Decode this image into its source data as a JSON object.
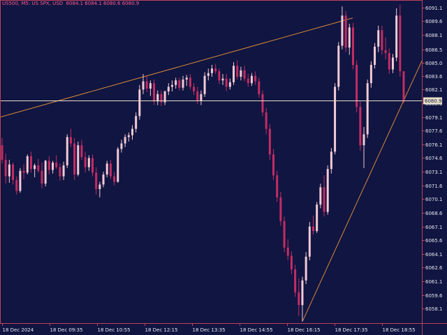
{
  "header": {
    "symbol": "US500, M5:  US SPX, USD",
    "ohlc": "6084.1 6084.1 6080.6 6080.9"
  },
  "colors": {
    "background": "#101541",
    "frame": "#c0405e",
    "bull_candle": "#f3cad5",
    "bear_candle": "#c42c64",
    "trendline": "#d8893a",
    "price_line": "#e8e0c8",
    "text": "#e6e6ee"
  },
  "chart_data": {
    "type": "candlestick",
    "title": "",
    "xlabel": "",
    "ylabel": "",
    "ylim": [
      6056.6,
      6091.6
    ],
    "y_ticks": [
      "6091.1",
      "6089.6",
      "6088.1",
      "6086.5",
      "6085.0",
      "6083.6",
      "6082.1",
      "6080.6",
      "6079.1",
      "6077.6",
      "6076.1",
      "6074.6",
      "6073.1",
      "6071.6",
      "6070.1",
      "6068.6",
      "6067.1",
      "6065.6",
      "6064.1",
      "6062.6",
      "6061.1",
      "6059.6",
      "6058.1"
    ],
    "x_ticks": [
      "18 Dec 2024",
      "18 Dec 09:35",
      "18 Dec 10:55",
      "18 Dec 12:15",
      "18 Dec 13:35",
      "18 Dec 14:55",
      "18 Dec 16:15",
      "18 Dec 17:35",
      "18 Dec 18:55"
    ],
    "current_price_label": "6080.9",
    "current_price": 6080.9,
    "candles": [
      {
        "o": 6076.0,
        "h": 6076.8,
        "l": 6074.0,
        "c": 6074.4
      },
      {
        "o": 6074.4,
        "h": 6075.1,
        "l": 6071.8,
        "c": 6072.6
      },
      {
        "o": 6072.6,
        "h": 6074.4,
        "l": 6071.9,
        "c": 6073.9
      },
      {
        "o": 6073.9,
        "h": 6074.1,
        "l": 6071.7,
        "c": 6072.2
      },
      {
        "o": 6072.2,
        "h": 6072.6,
        "l": 6070.6,
        "c": 6071.0
      },
      {
        "o": 6071.0,
        "h": 6073.5,
        "l": 6070.8,
        "c": 6073.2
      },
      {
        "o": 6073.2,
        "h": 6073.9,
        "l": 6072.3,
        "c": 6073.0
      },
      {
        "o": 6073.0,
        "h": 6075.0,
        "l": 6072.8,
        "c": 6074.8
      },
      {
        "o": 6074.8,
        "h": 6075.3,
        "l": 6073.0,
        "c": 6073.4
      },
      {
        "o": 6073.4,
        "h": 6074.0,
        "l": 6072.5,
        "c": 6073.8
      },
      {
        "o": 6073.8,
        "h": 6074.5,
        "l": 6073.0,
        "c": 6073.2
      },
      {
        "o": 6073.2,
        "h": 6074.1,
        "l": 6071.3,
        "c": 6071.8
      },
      {
        "o": 6071.8,
        "h": 6074.4,
        "l": 6071.5,
        "c": 6074.3
      },
      {
        "o": 6074.3,
        "h": 6074.8,
        "l": 6072.8,
        "c": 6073.3
      },
      {
        "o": 6073.3,
        "h": 6074.3,
        "l": 6072.9,
        "c": 6074.1
      },
      {
        "o": 6074.1,
        "h": 6074.9,
        "l": 6073.4,
        "c": 6073.6
      },
      {
        "o": 6073.6,
        "h": 6074.0,
        "l": 6072.1,
        "c": 6072.6
      },
      {
        "o": 6072.6,
        "h": 6074.2,
        "l": 6072.2,
        "c": 6073.8
      },
      {
        "o": 6073.8,
        "h": 6077.2,
        "l": 6073.5,
        "c": 6076.9
      },
      {
        "o": 6076.9,
        "h": 6077.8,
        "l": 6075.8,
        "c": 6076.2
      },
      {
        "o": 6076.2,
        "h": 6076.8,
        "l": 6072.2,
        "c": 6072.8
      },
      {
        "o": 6072.8,
        "h": 6076.4,
        "l": 6072.6,
        "c": 6076.0
      },
      {
        "o": 6076.0,
        "h": 6076.6,
        "l": 6074.4,
        "c": 6074.7
      },
      {
        "o": 6074.7,
        "h": 6075.3,
        "l": 6073.0,
        "c": 6073.6
      },
      {
        "o": 6073.6,
        "h": 6074.9,
        "l": 6073.2,
        "c": 6074.6
      },
      {
        "o": 6074.6,
        "h": 6075.0,
        "l": 6072.6,
        "c": 6073.0
      },
      {
        "o": 6073.0,
        "h": 6073.6,
        "l": 6070.6,
        "c": 6071.2
      },
      {
        "o": 6071.2,
        "h": 6072.0,
        "l": 6070.3,
        "c": 6071.7
      },
      {
        "o": 6071.7,
        "h": 6073.1,
        "l": 6071.4,
        "c": 6072.8
      },
      {
        "o": 6072.8,
        "h": 6074.3,
        "l": 6072.5,
        "c": 6074.0
      },
      {
        "o": 6074.0,
        "h": 6074.4,
        "l": 6072.3,
        "c": 6072.6
      },
      {
        "o": 6072.6,
        "h": 6073.1,
        "l": 6071.6,
        "c": 6072.0
      },
      {
        "o": 6072.0,
        "h": 6075.8,
        "l": 6071.9,
        "c": 6075.6
      },
      {
        "o": 6075.6,
        "h": 6076.6,
        "l": 6075.2,
        "c": 6076.2
      },
      {
        "o": 6076.2,
        "h": 6077.2,
        "l": 6075.8,
        "c": 6076.9
      },
      {
        "o": 6076.9,
        "h": 6077.4,
        "l": 6076.4,
        "c": 6077.1
      },
      {
        "o": 6077.1,
        "h": 6078.2,
        "l": 6076.6,
        "c": 6077.8
      },
      {
        "o": 6077.8,
        "h": 6079.6,
        "l": 6077.4,
        "c": 6079.2
      },
      {
        "o": 6079.2,
        "h": 6082.6,
        "l": 6078.8,
        "c": 6082.1
      },
      {
        "o": 6082.1,
        "h": 6083.8,
        "l": 6081.6,
        "c": 6083.0
      },
      {
        "o": 6083.0,
        "h": 6083.6,
        "l": 6081.8,
        "c": 6082.2
      },
      {
        "o": 6082.2,
        "h": 6083.1,
        "l": 6081.4,
        "c": 6082.8
      },
      {
        "o": 6082.8,
        "h": 6083.2,
        "l": 6080.4,
        "c": 6080.8
      },
      {
        "o": 6080.8,
        "h": 6082.0,
        "l": 6080.4,
        "c": 6081.6
      },
      {
        "o": 6081.6,
        "h": 6082.0,
        "l": 6080.3,
        "c": 6080.7
      },
      {
        "o": 6080.7,
        "h": 6082.0,
        "l": 6080.4,
        "c": 6081.9
      },
      {
        "o": 6081.9,
        "h": 6082.8,
        "l": 6081.5,
        "c": 6082.4
      },
      {
        "o": 6082.4,
        "h": 6083.1,
        "l": 6081.9,
        "c": 6082.6
      },
      {
        "o": 6082.6,
        "h": 6083.4,
        "l": 6082.2,
        "c": 6083.1
      },
      {
        "o": 6083.1,
        "h": 6083.4,
        "l": 6082.0,
        "c": 6082.3
      },
      {
        "o": 6082.3,
        "h": 6083.6,
        "l": 6082.0,
        "c": 6083.2
      },
      {
        "o": 6083.2,
        "h": 6083.7,
        "l": 6082.5,
        "c": 6083.4
      },
      {
        "o": 6083.4,
        "h": 6083.8,
        "l": 6082.1,
        "c": 6082.4
      },
      {
        "o": 6082.4,
        "h": 6082.8,
        "l": 6081.5,
        "c": 6081.9
      },
      {
        "o": 6081.9,
        "h": 6082.4,
        "l": 6080.5,
        "c": 6080.9
      },
      {
        "o": 6080.9,
        "h": 6082.0,
        "l": 6080.4,
        "c": 6081.6
      },
      {
        "o": 6081.6,
        "h": 6084.0,
        "l": 6081.3,
        "c": 6083.6
      },
      {
        "o": 6083.6,
        "h": 6084.4,
        "l": 6083.1,
        "c": 6083.9
      },
      {
        "o": 6083.9,
        "h": 6084.8,
        "l": 6083.5,
        "c": 6084.4
      },
      {
        "o": 6084.4,
        "h": 6084.9,
        "l": 6083.8,
        "c": 6084.1
      },
      {
        "o": 6084.1,
        "h": 6084.4,
        "l": 6082.7,
        "c": 6083.1
      },
      {
        "o": 6083.1,
        "h": 6083.8,
        "l": 6082.6,
        "c": 6083.3
      },
      {
        "o": 6083.3,
        "h": 6083.8,
        "l": 6081.9,
        "c": 6082.4
      },
      {
        "o": 6082.4,
        "h": 6083.3,
        "l": 6082.1,
        "c": 6082.9
      },
      {
        "o": 6082.9,
        "h": 6085.1,
        "l": 6082.6,
        "c": 6084.7
      },
      {
        "o": 6084.7,
        "h": 6085.3,
        "l": 6083.2,
        "c": 6083.5
      },
      {
        "o": 6083.5,
        "h": 6084.6,
        "l": 6083.1,
        "c": 6084.2
      },
      {
        "o": 6084.2,
        "h": 6084.7,
        "l": 6083.0,
        "c": 6083.3
      },
      {
        "o": 6083.3,
        "h": 6083.8,
        "l": 6082.4,
        "c": 6082.8
      },
      {
        "o": 6082.8,
        "h": 6083.9,
        "l": 6082.5,
        "c": 6083.6
      },
      {
        "o": 6083.6,
        "h": 6084.1,
        "l": 6082.6,
        "c": 6083.0
      },
      {
        "o": 6083.0,
        "h": 6083.4,
        "l": 6081.2,
        "c": 6081.6
      },
      {
        "o": 6081.6,
        "h": 6082.0,
        "l": 6079.2,
        "c": 6079.6
      },
      {
        "o": 6079.6,
        "h": 6080.1,
        "l": 6077.2,
        "c": 6077.8
      },
      {
        "o": 6077.8,
        "h": 6078.3,
        "l": 6074.4,
        "c": 6075.0
      },
      {
        "o": 6075.0,
        "h": 6075.6,
        "l": 6072.2,
        "c": 6072.7
      },
      {
        "o": 6072.7,
        "h": 6073.2,
        "l": 6069.8,
        "c": 6070.3
      },
      {
        "o": 6070.3,
        "h": 6070.9,
        "l": 6067.2,
        "c": 6067.7
      },
      {
        "o": 6067.7,
        "h": 6068.2,
        "l": 6064.3,
        "c": 6064.8
      },
      {
        "o": 6064.8,
        "h": 6065.7,
        "l": 6063.4,
        "c": 6063.9
      },
      {
        "o": 6063.9,
        "h": 6064.4,
        "l": 6061.9,
        "c": 6062.4
      },
      {
        "o": 6062.4,
        "h": 6062.9,
        "l": 6059.4,
        "c": 6059.9
      },
      {
        "o": 6059.9,
        "h": 6061.4,
        "l": 6057.3,
        "c": 6058.5
      },
      {
        "o": 6058.5,
        "h": 6061.6,
        "l": 6056.7,
        "c": 6061.2
      },
      {
        "o": 6061.2,
        "h": 6064.3,
        "l": 6060.8,
        "c": 6063.8
      },
      {
        "o": 6063.8,
        "h": 6067.6,
        "l": 6063.4,
        "c": 6067.1
      },
      {
        "o": 6067.1,
        "h": 6068.3,
        "l": 6066.2,
        "c": 6066.6
      },
      {
        "o": 6066.6,
        "h": 6069.8,
        "l": 6066.4,
        "c": 6069.5
      },
      {
        "o": 6069.5,
        "h": 6071.8,
        "l": 6069.1,
        "c": 6071.4
      },
      {
        "o": 6071.4,
        "h": 6072.7,
        "l": 6068.2,
        "c": 6068.7
      },
      {
        "o": 6068.7,
        "h": 6073.8,
        "l": 6068.4,
        "c": 6073.4
      },
      {
        "o": 6073.4,
        "h": 6075.7,
        "l": 6072.9,
        "c": 6075.3
      },
      {
        "o": 6075.3,
        "h": 6082.8,
        "l": 6075.0,
        "c": 6082.4
      },
      {
        "o": 6082.4,
        "h": 6087.3,
        "l": 6082.0,
        "c": 6086.9
      },
      {
        "o": 6086.9,
        "h": 6091.2,
        "l": 6086.5,
        "c": 6090.2
      },
      {
        "o": 6090.2,
        "h": 6090.7,
        "l": 6086.2,
        "c": 6086.7
      },
      {
        "o": 6086.7,
        "h": 6089.3,
        "l": 6085.9,
        "c": 6088.9
      },
      {
        "o": 6088.9,
        "h": 6089.4,
        "l": 6084.3,
        "c": 6084.8
      },
      {
        "o": 6084.8,
        "h": 6085.3,
        "l": 6079.6,
        "c": 6080.2
      },
      {
        "o": 6080.2,
        "h": 6080.8,
        "l": 6075.4,
        "c": 6076.0
      },
      {
        "o": 6076.0,
        "h": 6078.0,
        "l": 6073.5,
        "c": 6077.2
      },
      {
        "o": 6077.2,
        "h": 6083.2,
        "l": 6076.8,
        "c": 6082.8
      },
      {
        "o": 6082.8,
        "h": 6085.2,
        "l": 6082.3,
        "c": 6084.8
      },
      {
        "o": 6084.8,
        "h": 6087.2,
        "l": 6084.4,
        "c": 6086.8
      },
      {
        "o": 6086.8,
        "h": 6089.1,
        "l": 6086.2,
        "c": 6088.6
      },
      {
        "o": 6088.6,
        "h": 6089.1,
        "l": 6085.9,
        "c": 6086.4
      },
      {
        "o": 6086.4,
        "h": 6087.8,
        "l": 6085.4,
        "c": 6086.1
      },
      {
        "o": 6086.1,
        "h": 6086.6,
        "l": 6083.8,
        "c": 6084.3
      },
      {
        "o": 6084.3,
        "h": 6086.0,
        "l": 6083.9,
        "c": 6085.6
      },
      {
        "o": 6085.6,
        "h": 6091.0,
        "l": 6085.2,
        "c": 6090.2
      },
      {
        "o": 6090.2,
        "h": 6091.4,
        "l": 6083.5,
        "c": 6084.1
      },
      {
        "o": 6084.1,
        "h": 6084.1,
        "l": 6080.6,
        "c": 6080.9
      }
    ]
  }
}
